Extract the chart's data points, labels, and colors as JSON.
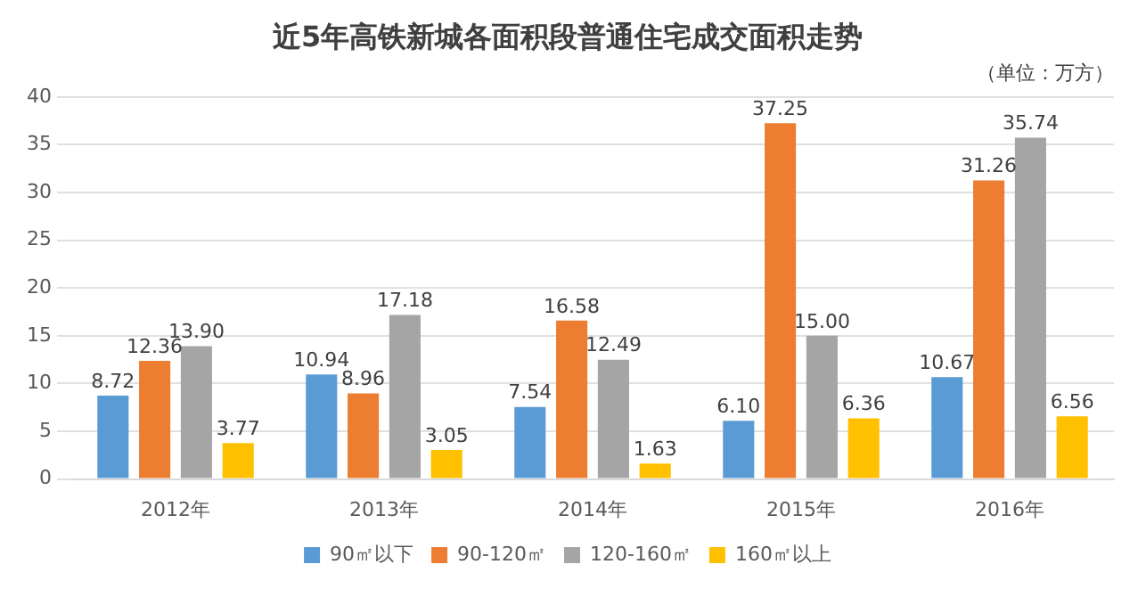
{
  "chart_data": {
    "type": "bar",
    "title": "近5年高铁新城各面积段普通住宅成交面积走势",
    "subtitle": "（单位：万方）",
    "categories": [
      "2012年",
      "2013年",
      "2014年",
      "2015年",
      "2016年"
    ],
    "series": [
      {
        "name": "90㎡以下",
        "color": "#5b9bd5",
        "values": [
          8.72,
          10.94,
          7.54,
          6.1,
          10.67
        ],
        "value_labels": [
          "8.72",
          "10.94",
          "7.54",
          "6.10",
          "10.67"
        ]
      },
      {
        "name": "90-120㎡",
        "color": "#ed7d31",
        "values": [
          12.36,
          8.96,
          16.58,
          37.25,
          31.26
        ],
        "value_labels": [
          "12.36",
          "8.96",
          "16.58",
          "37.25",
          "31.26"
        ]
      },
      {
        "name": "120-160㎡",
        "color": "#a5a5a5",
        "values": [
          13.9,
          17.18,
          12.49,
          15.0,
          35.74
        ],
        "value_labels": [
          "13.90",
          "17.18",
          "12.49",
          "15.00",
          "35.74"
        ]
      },
      {
        "name": "160㎡以上",
        "color": "#ffc000",
        "values": [
          3.77,
          3.05,
          1.63,
          6.36,
          6.56
        ],
        "value_labels": [
          "3.77",
          "3.05",
          "1.63",
          "6.36",
          "6.56"
        ]
      }
    ],
    "ylim": [
      0,
      40
    ],
    "yticks": [
      0,
      5,
      10,
      15,
      20,
      25,
      30,
      35,
      40
    ],
    "grid": "y",
    "legend": "bottom"
  }
}
